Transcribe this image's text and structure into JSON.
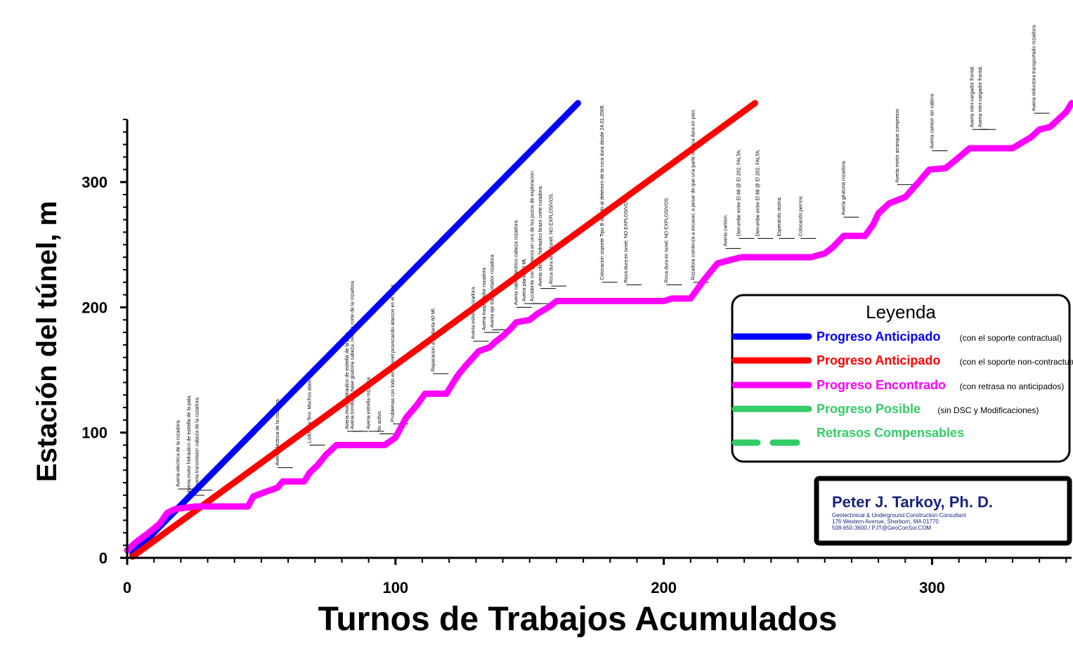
{
  "chart_data": {
    "type": "line",
    "title": "",
    "xlabel": "Turnos de Trabajos Acumulados",
    "ylabel": "Estación del túnel, m",
    "xlim": [
      0,
      352
    ],
    "ylim": [
      0,
      350
    ],
    "xticks": [
      0,
      100,
      200,
      300
    ],
    "yticks": [
      0,
      100,
      200,
      300
    ],
    "grid": false,
    "legend": {
      "title": "Leyenda",
      "placement": "right",
      "entries": [
        {
          "label": "Progreso Anticipado",
          "note": "(con el soporte contractual)",
          "color": "#0000ff",
          "style": "solid"
        },
        {
          "label": "Progreso Anticipado",
          "note": "(con el soporte non-contractual)",
          "color": "#ff0000",
          "style": "solid"
        },
        {
          "label": "Progreso Encontrado",
          "note": "(con retrasa no anticipados)",
          "color": "#ff00ff",
          "style": "solid"
        },
        {
          "label": "Progreso Posible",
          "note": "(sin DSC y Modificaciones)",
          "color": "#33cc66",
          "style": "solid"
        },
        {
          "label": "Retrasos Compensables",
          "note": "",
          "color": "#33cc66",
          "style": "dashed"
        }
      ]
    },
    "series": [
      {
        "name": "Progreso Anticipado (con el soporte contractual)",
        "color": "#0000ff",
        "x": [
          2,
          168
        ],
        "y": [
          3,
          363
        ]
      },
      {
        "name": "Progreso Anticipado (con el soporte non-contractual)",
        "color": "#ff0000",
        "x": [
          2,
          234
        ],
        "y": [
          1,
          363
        ]
      },
      {
        "name": "Progreso Encontrado (con retrasa no anticipados)",
        "color": "#ff00ff",
        "x": [
          0,
          3,
          8,
          12,
          15,
          18,
          25,
          30,
          45,
          47,
          52,
          56,
          58,
          66,
          68,
          71,
          74,
          78,
          80,
          87,
          90,
          96,
          100,
          104,
          108,
          111,
          119,
          123,
          126,
          129,
          131,
          135,
          137,
          140,
          143,
          145,
          150,
          153,
          157,
          160,
          165,
          200,
          203,
          210,
          215,
          220,
          225,
          229,
          236,
          245,
          255,
          260,
          263,
          267,
          275,
          278,
          280,
          284,
          290,
          295,
          299,
          305,
          309,
          314,
          320,
          330,
          337,
          340,
          344,
          347,
          350,
          352
        ],
        "y": [
          6,
          12,
          20,
          27,
          36,
          39,
          41,
          41,
          41,
          49,
          53,
          56,
          61,
          61,
          68,
          74,
          82,
          90,
          90,
          90,
          90,
          90,
          96,
          112,
          122,
          131,
          131,
          145,
          153,
          160,
          165,
          168,
          172,
          177,
          183,
          188,
          190,
          195,
          200,
          205,
          205,
          205,
          207,
          207,
          222,
          235,
          238,
          240,
          240,
          240,
          240,
          243,
          248,
          257,
          257,
          266,
          275,
          283,
          288,
          300,
          310,
          311,
          318,
          327,
          327,
          327,
          336,
          342,
          344,
          350,
          356,
          363
        ]
      },
      {
        "name": "Progreso Posible (sin DSC y Modificaciones)",
        "color": "#33cc66",
        "x": [],
        "y": []
      }
    ],
    "annotations": [
      {
        "x": 19,
        "y": 55,
        "text": "Averia electrica de la rozadora."
      },
      {
        "x": 23,
        "y": 50,
        "text": "Averia motor hidraulico de estrella de la pala."
      },
      {
        "x": 26,
        "y": 54,
        "text": "Averia transmision cabeza de la rozadora."
      },
      {
        "x": 56,
        "y": 72,
        "text": "Averia electrica de la rozadora."
      },
      {
        "x": 68,
        "y": 90,
        "text": "Lodo muy fino. Muchos atascos."
      },
      {
        "x": 82,
        "y": 101,
        "text": "Averia motor hidraulico de estrella de la pala."
      },
      {
        "x": 84,
        "y": 101,
        "text": "Averia tornilla de base giratoria cabeza, retrasa corte de la rozadora."
      },
      {
        "x": 90,
        "y": 101,
        "text": "Averia estrella rozadora."
      },
      {
        "x": 94,
        "y": 99,
        "text": "No activo."
      },
      {
        "x": 99,
        "y": 107,
        "text": "Problemas con lodo en el tunel provocando atascos en el tunel."
      },
      {
        "x": 114,
        "y": 147,
        "text": "Reparacion a la planta 60 Mt."
      },
      {
        "x": 129,
        "y": 173,
        "text": "Averia estrella rozadora."
      },
      {
        "x": 133,
        "y": 180,
        "text": "Averia trasportador rozadora."
      },
      {
        "x": 136,
        "y": 182,
        "text": "Averia eje transportador rozadora."
      },
      {
        "x": 145,
        "y": 200,
        "text": "Averia cable electrico cabeza rozadora."
      },
      {
        "x": 148,
        "y": 203,
        "text": "Averia planta 60 Mt."
      },
      {
        "x": 151,
        "y": 203,
        "text": "Accidente con primeros en uno de los pozos de exploracion."
      },
      {
        "x": 154,
        "y": 215,
        "text": "Averia cilindro hidraulico brazo corte rozadora."
      },
      {
        "x": 158,
        "y": 217,
        "text": "Roca dura en el tunel; NO EXPLOSIVOS."
      },
      {
        "x": 177,
        "y": 220,
        "text": "Colocacion soporte Tipo B debido al deterioro de la roca dura desde 24.01.2008."
      },
      {
        "x": 186,
        "y": 218,
        "text": "Roca dura en tunel; NO EXPLOSIVOS."
      },
      {
        "x": 201,
        "y": 218,
        "text": "Roca dura en tunel; NO EXPLOSIVOS."
      },
      {
        "x": 211,
        "y": 220,
        "text": "Rozadora comienza a excavar, a pesar de que una parte de roca dura en piso."
      },
      {
        "x": 223,
        "y": 247,
        "text": "Averia camion."
      },
      {
        "x": 228,
        "y": 255,
        "text": "Derrumbe entre El 88 @ El 202; FALTA;"
      },
      {
        "x": 235,
        "y": 255,
        "text": "Derrumbe entre El 88 @ El 202; FALTA;"
      },
      {
        "x": 243,
        "y": 255,
        "text": "Esperando resina."
      },
      {
        "x": 251,
        "y": 255,
        "text": "Colocando pernos."
      },
      {
        "x": 267,
        "y": 272,
        "text": "Averia giratoria rozadora."
      },
      {
        "x": 287,
        "y": 298,
        "text": "Averia motor arranque compresor."
      },
      {
        "x": 300,
        "y": 325,
        "text": "Averia camion sin cabina."
      },
      {
        "x": 315,
        "y": 342,
        "text": "Averia mini-cargador frontal."
      },
      {
        "x": 318,
        "y": 342,
        "text": "Averia mini-cargador frontal."
      },
      {
        "x": 338,
        "y": 355,
        "text": "Averia reductora transportado rozadora."
      }
    ]
  },
  "branding": {
    "name": "Peter J. Tarkoy, Ph. D.",
    "subtitle": "Geotechnical & Underground Construction Consultant",
    "address": "176 Western Avenue, Sherborn, MA 01770",
    "contact": "508-650-3600 / PJT@GeoConSol.COM"
  }
}
